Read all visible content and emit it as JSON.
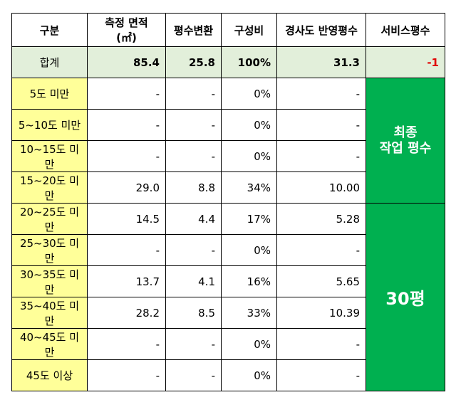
{
  "headers": [
    "구분",
    "측정 면적 (㎡)",
    "평수변환",
    "구성비",
    "경사도 반영평수",
    "서비스평수"
  ],
  "total": {
    "label": "합계",
    "area": "85.4",
    "pyeong": "25.8",
    "ratio": "100%",
    "slope": "31.3",
    "service": "-1"
  },
  "rows": [
    {
      "label": "5도 미만",
      "area": "-",
      "pyeong": "-",
      "ratio": "0%",
      "slope": "-"
    },
    {
      "label": "5~10도 미만",
      "area": "-",
      "pyeong": "-",
      "ratio": "0%",
      "slope": "-"
    },
    {
      "label": "10~15도 미만",
      "area": "-",
      "pyeong": "-",
      "ratio": "0%",
      "slope": "-"
    },
    {
      "label": "15~20도 미만",
      "area": "29.0",
      "pyeong": "8.8",
      "ratio": "34%",
      "slope": "10.00"
    },
    {
      "label": "20~25도 미만",
      "area": "14.5",
      "pyeong": "4.4",
      "ratio": "17%",
      "slope": "5.28"
    },
    {
      "label": "25~30도 미만",
      "area": "-",
      "pyeong": "-",
      "ratio": "0%",
      "slope": "-"
    },
    {
      "label": "30~35도 미만",
      "area": "13.7",
      "pyeong": "4.1",
      "ratio": "16%",
      "slope": "5.65"
    },
    {
      "label": "35~40도 미만",
      "area": "28.2",
      "pyeong": "8.5",
      "ratio": "33%",
      "slope": "10.39"
    },
    {
      "label": "40~45도 미만",
      "area": "-",
      "pyeong": "-",
      "ratio": "0%",
      "slope": "-"
    },
    {
      "label": "45도 이상",
      "area": "-",
      "pyeong": "-",
      "ratio": "0%",
      "slope": "-"
    }
  ],
  "final_label": {
    "line1": "최종",
    "line2": "작업 평수"
  },
  "final_value": "30평",
  "colors": {
    "header_total_bg": "#e2efda",
    "label_bg": "#ffff99",
    "final_bg": "#00b050",
    "negative": "#e00000"
  }
}
